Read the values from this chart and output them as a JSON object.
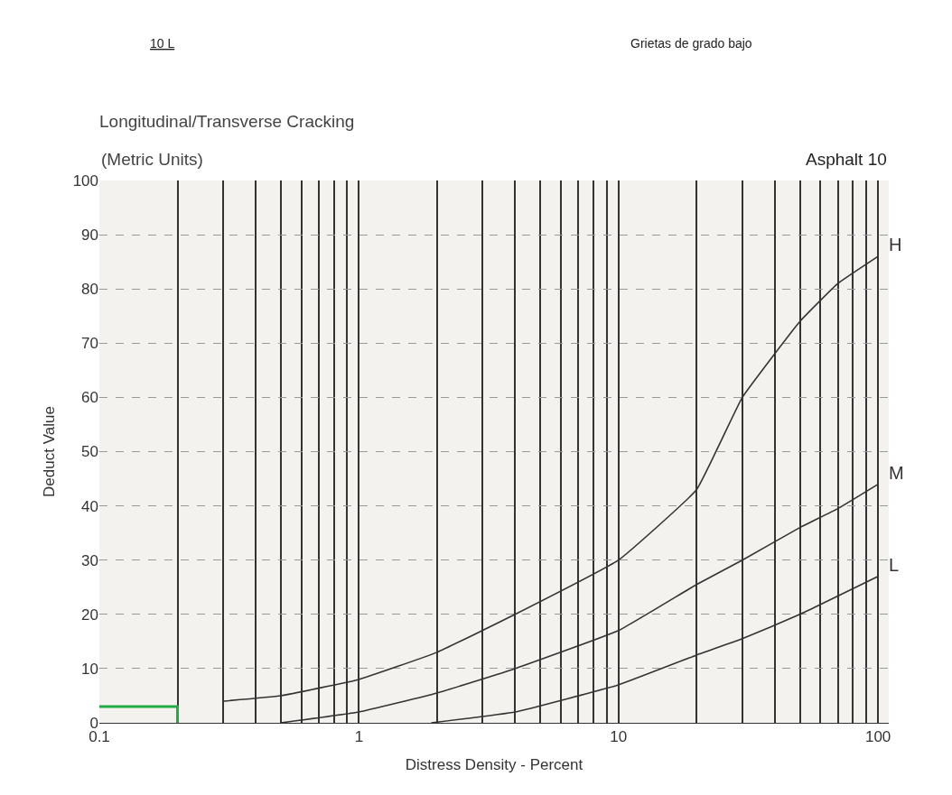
{
  "chart_data": {
    "type": "line",
    "title": "Longitudinal/Transverse Cracking",
    "subtitle": "(Metric Units)",
    "xlabel": "Distress Density - Percent",
    "ylabel": "Deduct Value",
    "annotations": [
      "10 L",
      "Grietas de grado bajo",
      "Asphalt 10"
    ],
    "log": "x",
    "grid": true,
    "legend": false,
    "marker": "none",
    "line_style": "solid",
    "xlim": [
      0.1,
      110
    ],
    "ylim": [
      0,
      100
    ],
    "xticks": [
      0.1,
      {
        "value": 0.2,
        "label": null
      },
      {
        "value": 0.3,
        "label": null
      },
      {
        "value": 0.4,
        "label": null
      },
      {
        "value": 0.5,
        "label": null
      },
      {
        "value": 0.6,
        "label": null
      },
      {
        "value": 0.7,
        "label": null
      },
      {
        "value": 0.8,
        "label": null
      },
      {
        "value": 0.9,
        "label": null
      },
      1,
      {
        "value": 2,
        "label": null
      },
      {
        "value": 3,
        "label": null
      },
      {
        "value": 4,
        "label": null
      },
      {
        "value": 5,
        "label": null
      },
      {
        "value": 6,
        "label": null
      },
      {
        "value": 7,
        "label": null
      },
      {
        "value": 8,
        "label": null
      },
      {
        "value": 9,
        "label": null
      },
      10,
      {
        "value": 20,
        "label": null
      },
      {
        "value": 30,
        "label": null
      },
      {
        "value": 40,
        "label": null
      },
      {
        "value": 50,
        "label": null
      },
      {
        "value": 60,
        "label": null
      },
      {
        "value": 70,
        "label": null
      },
      {
        "value": 80,
        "label": null
      },
      {
        "value": 90,
        "label": null
      },
      100
    ],
    "yticks": [
      0,
      10,
      20,
      30,
      40,
      50,
      60,
      70,
      80,
      90,
      100
    ],
    "series": [
      {
        "name": "H",
        "color": "#333333",
        "x": [
          0.3,
          0.5,
          1,
          2,
          4,
          10,
          20,
          30,
          50,
          70,
          100
        ],
        "values": [
          4,
          5,
          8,
          13,
          20,
          30,
          43,
          60,
          74,
          81,
          86
        ]
      },
      {
        "name": "M",
        "color": "#333333",
        "x": [
          0.5,
          1,
          2,
          4,
          10,
          20,
          30,
          50,
          70,
          100
        ],
        "values": [
          0,
          2,
          5.5,
          10,
          17,
          25.5,
          30,
          36,
          39.5,
          44
        ]
      },
      {
        "name": "L",
        "color": "#333333",
        "x": [
          1.9,
          4,
          10,
          20,
          30,
          50,
          100
        ],
        "values": [
          0,
          2,
          7,
          12.5,
          15.5,
          20,
          27
        ]
      },
      {
        "color": "#22aa44",
        "x": [
          0.1,
          0.2,
          0.2
        ],
        "values": [
          3,
          3,
          0
        ]
      }
    ]
  }
}
